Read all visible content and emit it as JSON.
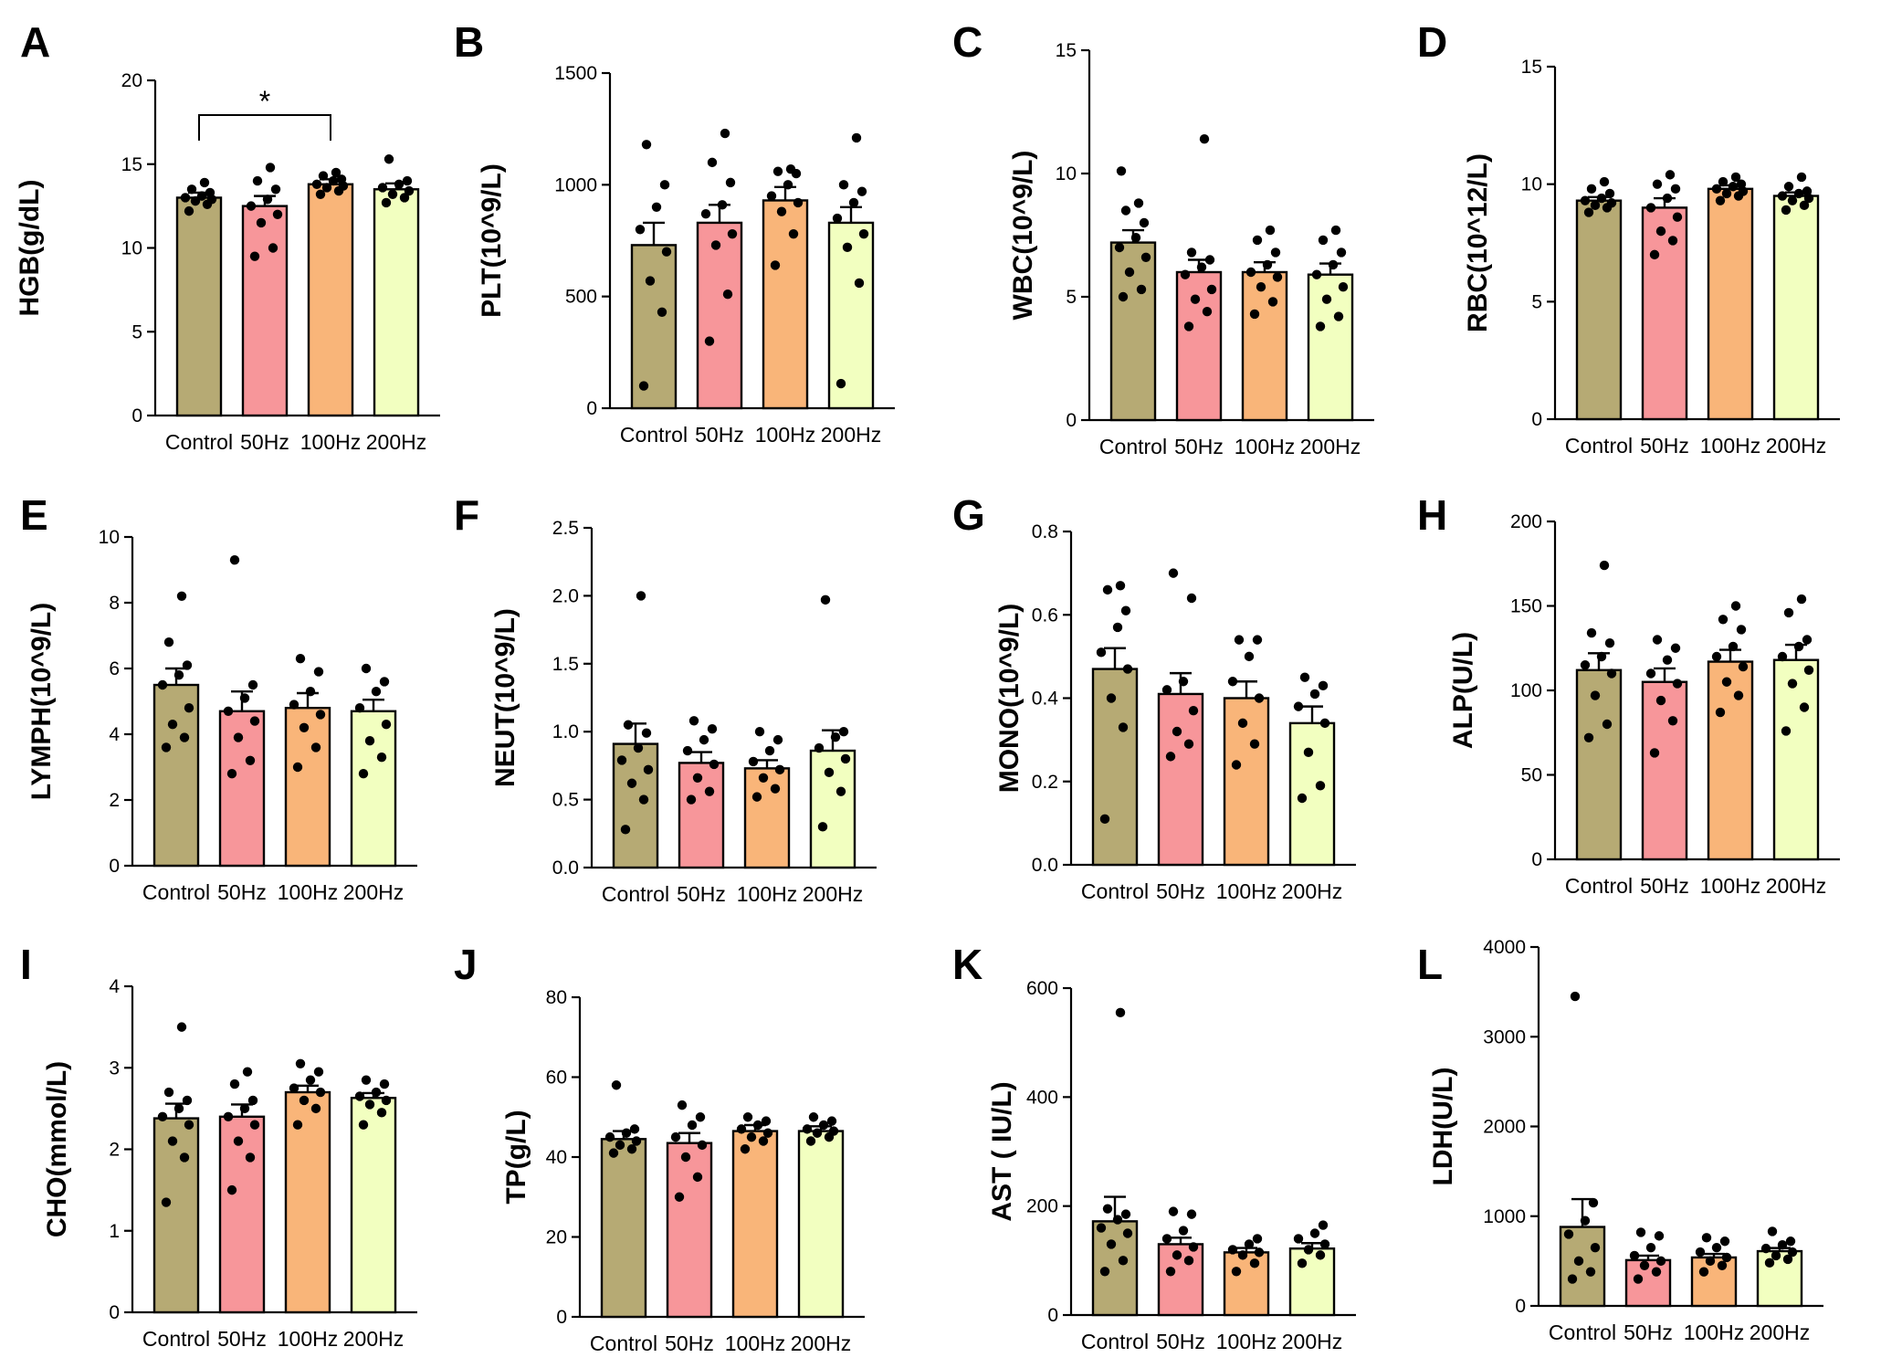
{
  "colors": {
    "Control": "#b6aa74",
    "50Hz": "#f7969a",
    "100Hz": "#f9b579",
    "200Hz": "#f2ffc0"
  },
  "chart_data": [
    {
      "id": "A",
      "letter": "A",
      "type": "bar",
      "ylabel": "HGB(g/dL)",
      "yticks": [
        "0",
        "5",
        "10",
        "15",
        "20"
      ],
      "ylim": [
        0,
        20
      ],
      "categories": [
        "Control",
        "50Hz",
        "100Hz",
        "200Hz"
      ],
      "means": [
        13.0,
        12.5,
        13.8,
        13.5
      ],
      "sem": [
        0.3,
        0.6,
        0.3,
        0.35
      ],
      "points": [
        [
          12.2,
          12.6,
          12.8,
          12.9,
          13.0,
          13.1,
          13.3,
          13.5,
          13.9
        ],
        [
          9.5,
          10.0,
          11.5,
          12.0,
          12.5,
          12.9,
          13.5,
          14.0,
          14.8
        ],
        [
          13.2,
          13.4,
          13.6,
          13.7,
          13.8,
          14.0,
          14.1,
          14.3,
          14.5
        ],
        [
          12.7,
          13.0,
          13.2,
          13.4,
          13.6,
          13.8,
          14.0,
          15.3
        ]
      ],
      "significance": {
        "from": 0,
        "to": 2,
        "mark": "*"
      }
    },
    {
      "id": "B",
      "letter": "B",
      "type": "bar",
      "ylabel": "PLT(10^9/L)",
      "yticks": [
        "0",
        "500",
        "1000",
        "1500"
      ],
      "ylim": [
        0,
        1500
      ],
      "categories": [
        "Control",
        "50Hz",
        "100Hz",
        "200Hz"
      ],
      "means": [
        730,
        830,
        930,
        830
      ],
      "sem": [
        100,
        80,
        60,
        70
      ],
      "points": [
        [
          100,
          430,
          570,
          700,
          800,
          900,
          1000,
          1180
        ],
        [
          300,
          510,
          730,
          780,
          870,
          910,
          1010,
          1100,
          1230
        ],
        [
          640,
          780,
          880,
          920,
          950,
          1000,
          1050,
          1060,
          1070
        ],
        [
          110,
          560,
          720,
          780,
          850,
          920,
          970,
          1000,
          1210
        ]
      ]
    },
    {
      "id": "C",
      "letter": "C",
      "type": "bar",
      "ylabel": "WBC(10^9/L)",
      "yticks": [
        "0",
        "5",
        "10",
        "15"
      ],
      "ylim": [
        0,
        15
      ],
      "categories": [
        "Control",
        "50Hz",
        "100Hz",
        "200Hz"
      ],
      "means": [
        7.2,
        6.0,
        6.0,
        5.9
      ],
      "sem": [
        0.5,
        0.5,
        0.4,
        0.45
      ],
      "points": [
        [
          5.0,
          5.3,
          6.0,
          6.6,
          7.0,
          7.4,
          8.0,
          8.5,
          8.8,
          10.1
        ],
        [
          3.8,
          4.4,
          4.9,
          5.3,
          5.9,
          6.2,
          6.5,
          6.8,
          11.4
        ],
        [
          4.3,
          4.8,
          5.4,
          5.8,
          6.0,
          6.3,
          6.8,
          7.3,
          7.7
        ],
        [
          3.8,
          4.2,
          4.9,
          5.4,
          5.9,
          6.3,
          6.8,
          7.3,
          7.7
        ]
      ]
    },
    {
      "id": "D",
      "letter": "D",
      "type": "bar",
      "ylabel": "RBC(10^12/L)",
      "yticks": [
        "0",
        "5",
        "10",
        "15"
      ],
      "ylim": [
        0,
        15
      ],
      "categories": [
        "Control",
        "50Hz",
        "100Hz",
        "200Hz"
      ],
      "means": [
        9.3,
        9.0,
        9.8,
        9.5
      ],
      "sem": [
        0.15,
        0.4,
        0.15,
        0.15
      ],
      "points": [
        [
          8.8,
          9.0,
          9.1,
          9.2,
          9.3,
          9.4,
          9.6,
          9.8,
          10.1
        ],
        [
          7.0,
          7.6,
          8.0,
          8.6,
          9.0,
          9.4,
          9.8,
          10.0,
          10.4
        ],
        [
          9.3,
          9.5,
          9.6,
          9.7,
          9.8,
          9.9,
          10.0,
          10.1,
          10.3
        ],
        [
          8.9,
          9.1,
          9.3,
          9.4,
          9.5,
          9.6,
          9.7,
          9.9,
          10.3
        ]
      ]
    },
    {
      "id": "E",
      "letter": "E",
      "type": "bar",
      "ylabel": "LYMPH(10^9/L)",
      "yticks": [
        "0",
        "2",
        "4",
        "6",
        "8",
        "10"
      ],
      "ylim": [
        0,
        10
      ],
      "categories": [
        "Control",
        "50Hz",
        "100Hz",
        "200Hz"
      ],
      "means": [
        5.5,
        4.7,
        4.8,
        4.7
      ],
      "sem": [
        0.5,
        0.6,
        0.45,
        0.35
      ],
      "points": [
        [
          3.6,
          3.9,
          4.3,
          4.8,
          5.5,
          5.8,
          6.1,
          6.8,
          8.2
        ],
        [
          2.8,
          3.2,
          3.9,
          4.4,
          4.7,
          5.1,
          5.5,
          9.3
        ],
        [
          3.0,
          3.6,
          4.2,
          4.6,
          4.9,
          5.3,
          5.9,
          6.3
        ],
        [
          2.8,
          3.3,
          3.8,
          4.3,
          4.8,
          5.3,
          5.6,
          6.0
        ]
      ]
    },
    {
      "id": "F",
      "letter": "F",
      "type": "bar",
      "ylabel": "NEUT(10^9/L)",
      "yticks": [
        "0.0",
        "0.5",
        "1.0",
        "1.5",
        "2.0",
        "2.5"
      ],
      "ylim": [
        0,
        2.5
      ],
      "categories": [
        "Control",
        "50Hz",
        "100Hz",
        "200Hz"
      ],
      "means": [
        0.91,
        0.77,
        0.73,
        0.86
      ],
      "sem": [
        0.15,
        0.08,
        0.06,
        0.15
      ],
      "points": [
        [
          0.28,
          0.5,
          0.62,
          0.72,
          0.79,
          0.88,
          0.99,
          1.05,
          2.0
        ],
        [
          0.5,
          0.56,
          0.66,
          0.76,
          0.86,
          0.94,
          1.02,
          1.08
        ],
        [
          0.52,
          0.58,
          0.66,
          0.72,
          0.78,
          0.86,
          0.94,
          1.0
        ],
        [
          0.3,
          0.56,
          0.7,
          0.8,
          0.88,
          0.96,
          1.0,
          1.97
        ]
      ]
    },
    {
      "id": "G",
      "letter": "G",
      "type": "bar",
      "ylabel": "MONO(10^9/L)",
      "yticks": [
        "0.0",
        "0.2",
        "0.4",
        "0.6",
        "0.8"
      ],
      "ylim": [
        0,
        0.8
      ],
      "categories": [
        "Control",
        "50Hz",
        "100Hz",
        "200Hz"
      ],
      "means": [
        0.47,
        0.41,
        0.4,
        0.34
      ],
      "sem": [
        0.05,
        0.05,
        0.04,
        0.04
      ],
      "points": [
        [
          0.11,
          0.33,
          0.4,
          0.47,
          0.51,
          0.57,
          0.61,
          0.66,
          0.67
        ],
        [
          0.26,
          0.29,
          0.32,
          0.37,
          0.42,
          0.44,
          0.64,
          0.7
        ],
        [
          0.24,
          0.29,
          0.34,
          0.4,
          0.44,
          0.5,
          0.54,
          0.54
        ],
        [
          0.16,
          0.19,
          0.27,
          0.34,
          0.38,
          0.41,
          0.43,
          0.45
        ]
      ]
    },
    {
      "id": "H",
      "letter": "H",
      "type": "bar",
      "ylabel": "ALP(U/L)",
      "yticks": [
        "0",
        "50",
        "100",
        "150",
        "200"
      ],
      "ylim": [
        0,
        200
      ],
      "categories": [
        "Control",
        "50Hz",
        "100Hz",
        "200Hz"
      ],
      "means": [
        112,
        105,
        117,
        118
      ],
      "sem": [
        10,
        8,
        7,
        9
      ],
      "points": [
        [
          72,
          80,
          97,
          110,
          115,
          120,
          128,
          134,
          174
        ],
        [
          63,
          82,
          94,
          104,
          110,
          118,
          125,
          130
        ],
        [
          87,
          97,
          105,
          114,
          120,
          126,
          136,
          142,
          150
        ],
        [
          76,
          90,
          104,
          112,
          120,
          126,
          130,
          146,
          154
        ]
      ]
    },
    {
      "id": "I",
      "letter": "I",
      "type": "bar",
      "ylabel": "CHO(mmol/L)",
      "yticks": [
        "0",
        "1",
        "2",
        "3",
        "4"
      ],
      "ylim": [
        0,
        4
      ],
      "categories": [
        "Control",
        "50Hz",
        "100Hz",
        "200Hz"
      ],
      "means": [
        2.38,
        2.4,
        2.7,
        2.63
      ],
      "sem": [
        0.18,
        0.15,
        0.08,
        0.06
      ],
      "points": [
        [
          1.35,
          1.9,
          2.1,
          2.3,
          2.4,
          2.5,
          2.6,
          2.7,
          3.5
        ],
        [
          1.5,
          1.9,
          2.1,
          2.3,
          2.4,
          2.5,
          2.6,
          2.8,
          2.95
        ],
        [
          2.3,
          2.5,
          2.6,
          2.7,
          2.75,
          2.85,
          2.95,
          3.05
        ],
        [
          2.3,
          2.45,
          2.55,
          2.6,
          2.65,
          2.7,
          2.8,
          2.85
        ]
      ]
    },
    {
      "id": "J",
      "letter": "J",
      "type": "bar",
      "ylabel": "TP(g/L)",
      "yticks": [
        "0",
        "20",
        "40",
        "60",
        "80"
      ],
      "ylim": [
        0,
        80
      ],
      "categories": [
        "Control",
        "50Hz",
        "100Hz",
        "200Hz"
      ],
      "means": [
        44.5,
        43.5,
        46.5,
        46.5
      ],
      "sem": [
        2.0,
        2.5,
        1.5,
        1.2
      ],
      "points": [
        [
          41,
          42,
          43,
          44,
          45,
          46,
          47,
          58
        ],
        [
          30,
          35,
          40,
          43,
          45,
          48,
          50,
          53
        ],
        [
          42,
          44,
          45,
          46,
          47,
          48,
          49,
          50
        ],
        [
          44,
          45,
          46,
          46.5,
          47,
          48,
          49,
          50
        ]
      ]
    },
    {
      "id": "K",
      "letter": "K",
      "type": "bar",
      "ylabel": "AST ( IU/L)",
      "yticks": [
        "0",
        "200",
        "400",
        "600"
      ],
      "ylim": [
        0,
        600
      ],
      "categories": [
        "Control",
        "50Hz",
        "100Hz",
        "200Hz"
      ],
      "means": [
        172,
        130,
        115,
        122
      ],
      "sem": [
        45,
        12,
        8,
        10
      ],
      "points": [
        [
          80,
          100,
          130,
          150,
          160,
          175,
          185,
          195,
          555
        ],
        [
          80,
          100,
          110,
          125,
          140,
          155,
          185,
          190
        ],
        [
          80,
          95,
          110,
          115,
          120,
          130,
          140
        ],
        [
          95,
          110,
          120,
          130,
          140,
          150,
          165
        ]
      ]
    },
    {
      "id": "L",
      "letter": "L",
      "type": "bar",
      "ylabel": "LDH(U/L)",
      "yticks": [
        "0",
        "1000",
        "2000",
        "3000",
        "4000"
      ],
      "ylim": [
        0,
        4000
      ],
      "categories": [
        "Control",
        "50Hz",
        "100Hz",
        "200Hz"
      ],
      "means": [
        880,
        510,
        540,
        610
      ],
      "sem": [
        310,
        50,
        40,
        35
      ],
      "points": [
        [
          300,
          380,
          500,
          650,
          800,
          950,
          1150,
          3450
        ],
        [
          300,
          380,
          450,
          500,
          560,
          650,
          780,
          820
        ],
        [
          380,
          450,
          500,
          540,
          600,
          650,
          720,
          760
        ],
        [
          480,
          520,
          560,
          600,
          640,
          680,
          720,
          830
        ]
      ]
    }
  ]
}
